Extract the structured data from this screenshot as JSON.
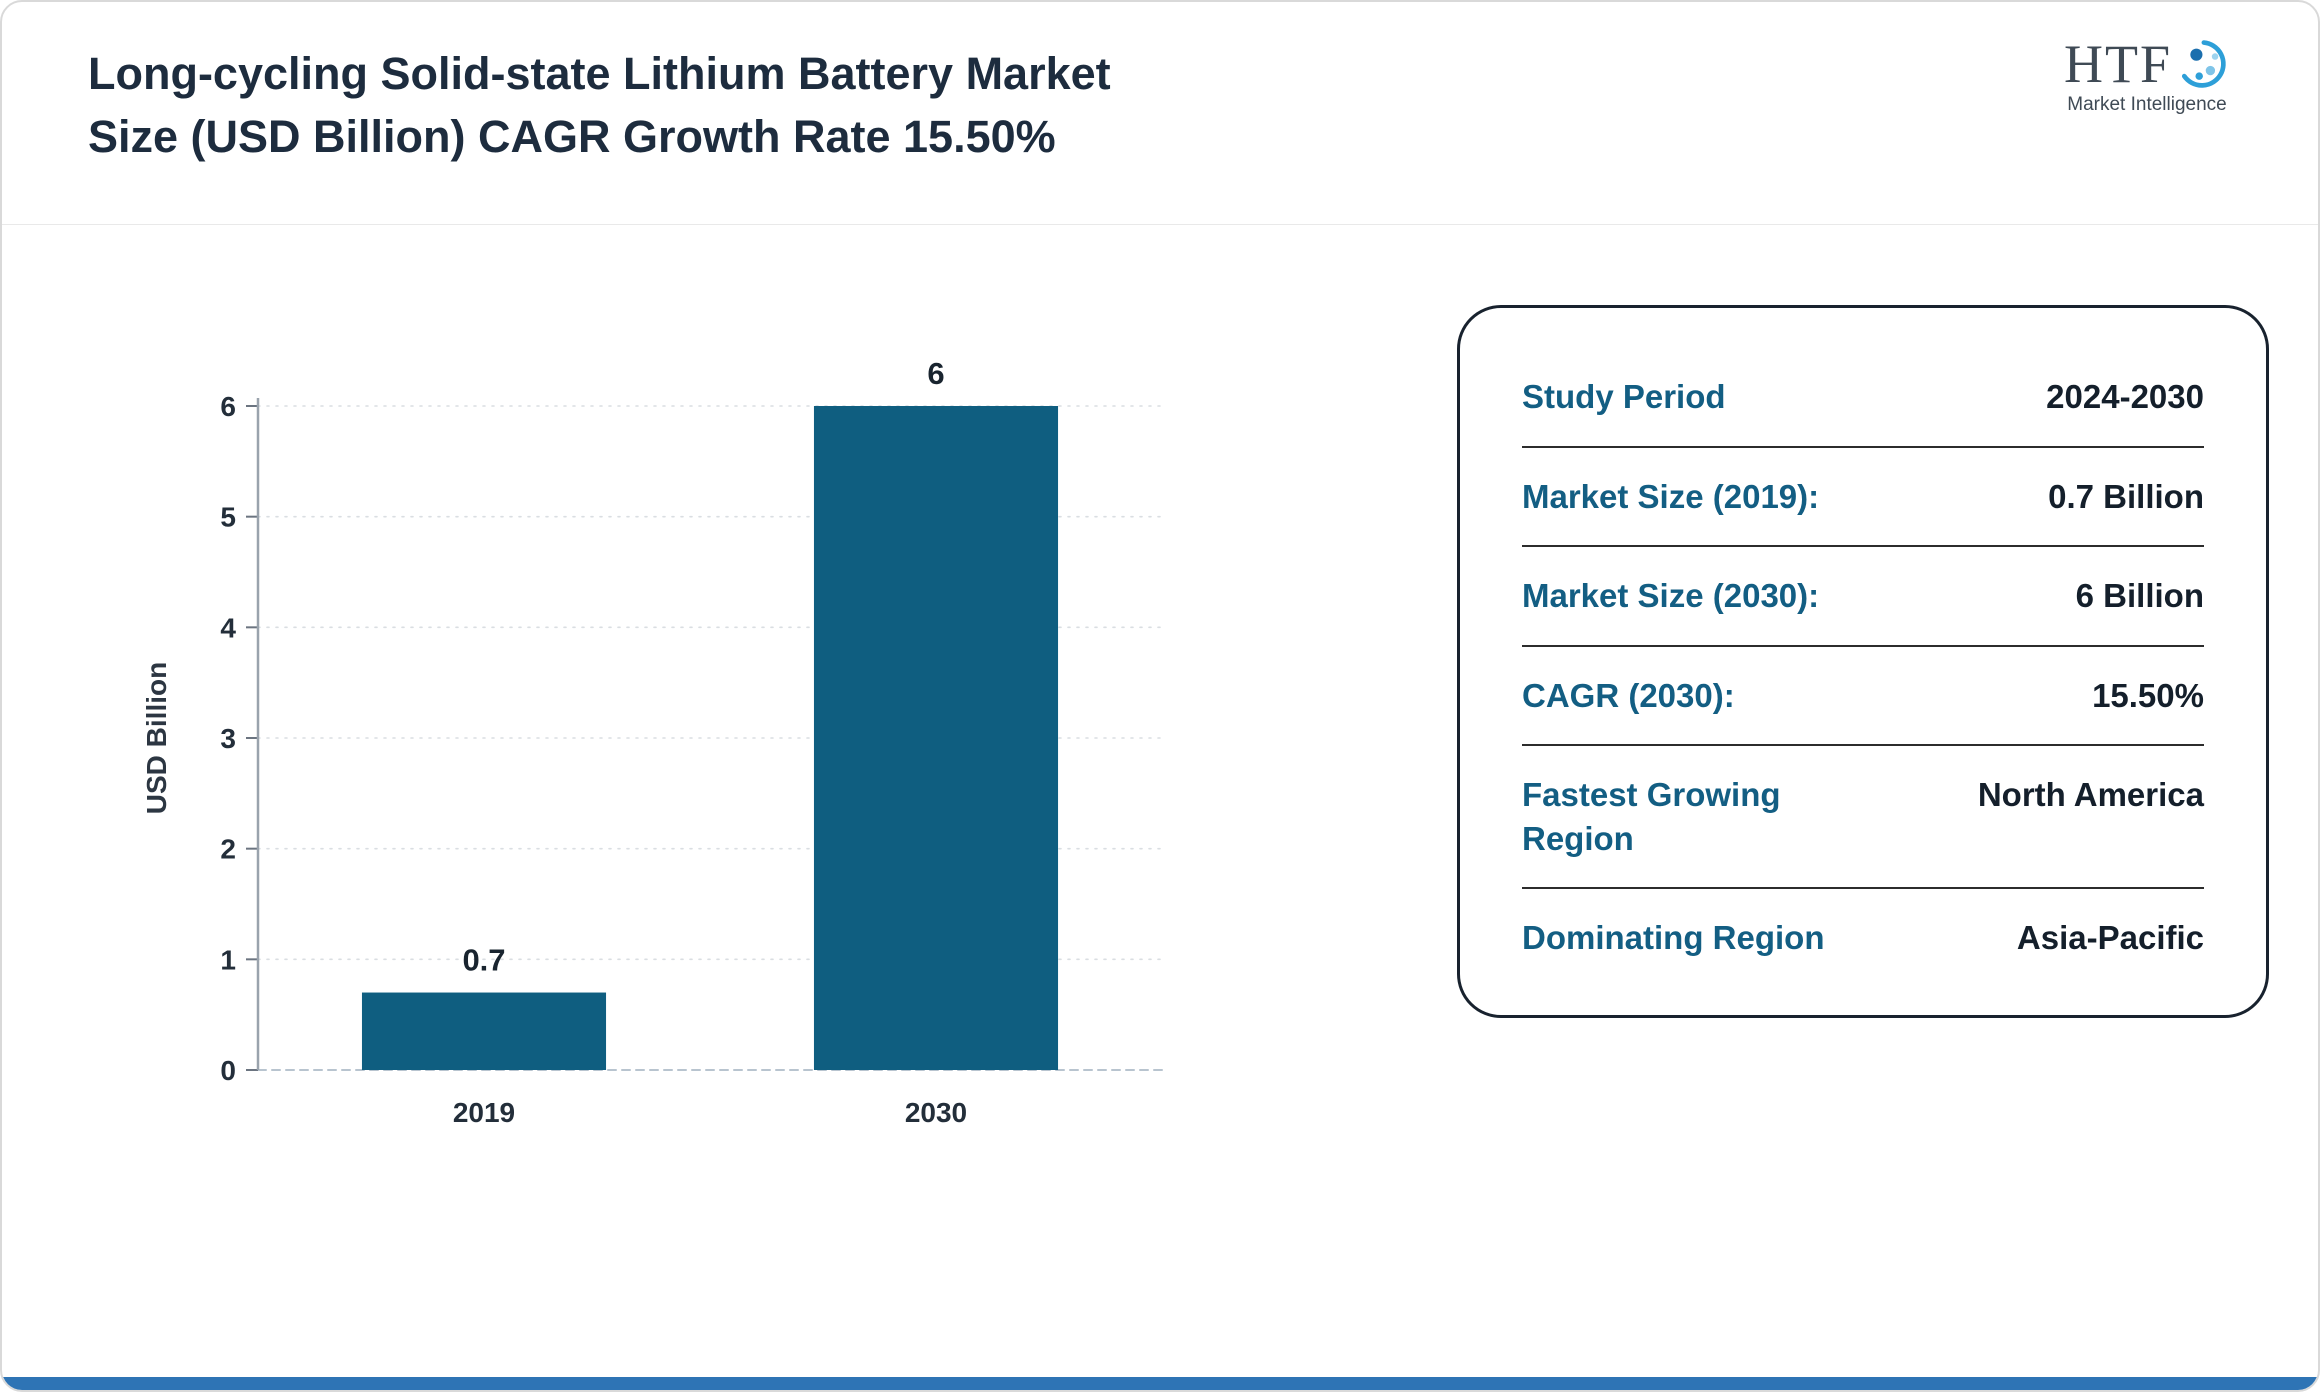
{
  "header": {
    "title_line1": "Long-cycling Solid-state Lithium Battery Market",
    "title_line2": "Size (USD Billion) CAGR Growth Rate 15.50%",
    "logo": {
      "text": "HTF",
      "subtext": "Market Intelligence"
    }
  },
  "chart_data": {
    "type": "bar",
    "title": "Long-cycling Solid-state Lithium Battery Market Size (USD Billion) CAGR Growth Rate 15.50%",
    "categories": [
      "2019",
      "2030"
    ],
    "values": [
      0.7,
      6
    ],
    "xlabel": "",
    "ylabel": "USD Billion",
    "ylim": [
      0,
      6
    ],
    "ytick_step": 1,
    "grid": "dotted-horizontal",
    "legend": "none",
    "bar_color": "#0f5e80"
  },
  "card": {
    "rows": [
      {
        "label": "Study Period",
        "value": "2024-2030"
      },
      {
        "label": "Market Size (2019):",
        "value": "0.7 Billion"
      },
      {
        "label": "Market Size (2030):",
        "value": "6 Billion"
      },
      {
        "label": "CAGR (2030):",
        "value": "15.50%"
      },
      {
        "label": "Fastest Growing Region",
        "value": "North America"
      },
      {
        "label": "Dominating Region",
        "value": "Asia-Pacific"
      }
    ]
  },
  "colors": {
    "accent_teal": "#0f5e80",
    "label_teal": "#135e83",
    "title_navy": "#1d2c3e",
    "footer_blue": "#2e74b5"
  }
}
